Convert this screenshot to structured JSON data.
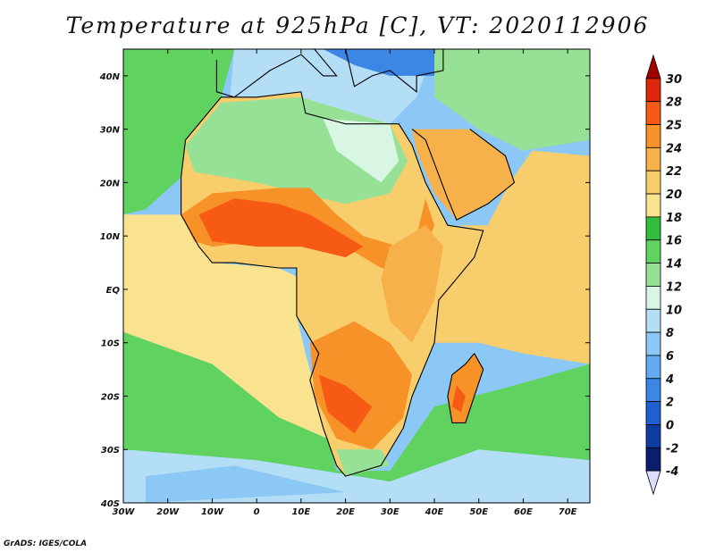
{
  "title": "Temperature at 925hPa [C], VT: 2020112906",
  "credit": "GrADS: IGES/COLA",
  "map": {
    "lon_range": [
      -30,
      75
    ],
    "lat_range": [
      -40,
      45
    ],
    "lon_ticks": [
      {
        "value": -30,
        "label": "30W"
      },
      {
        "value": -20,
        "label": "20W"
      },
      {
        "value": -10,
        "label": "10W"
      },
      {
        "value": 0,
        "label": "0"
      },
      {
        "value": 10,
        "label": "10E"
      },
      {
        "value": 20,
        "label": "20E"
      },
      {
        "value": 30,
        "label": "30E"
      },
      {
        "value": 40,
        "label": "40E"
      },
      {
        "value": 50,
        "label": "50E"
      },
      {
        "value": 60,
        "label": "60E"
      },
      {
        "value": 70,
        "label": "70E"
      }
    ],
    "lat_ticks": [
      {
        "value": 40,
        "label": "40N"
      },
      {
        "value": 30,
        "label": "30N"
      },
      {
        "value": 20,
        "label": "20N"
      },
      {
        "value": 10,
        "label": "10N"
      },
      {
        "value": 0,
        "label": "EQ"
      },
      {
        "value": -10,
        "label": "10S"
      },
      {
        "value": -20,
        "label": "20S"
      },
      {
        "value": -30,
        "label": "30S"
      },
      {
        "value": -40,
        "label": "40S"
      }
    ]
  },
  "colorbar": {
    "levels": [
      "30",
      "28",
      "25",
      "24",
      "22",
      "20",
      "18",
      "16",
      "14",
      "12",
      "10",
      "8",
      "6",
      "4",
      "2",
      "0",
      "-2",
      "-4"
    ],
    "colors": [
      "#a50000",
      "#e0260a",
      "#f65a14",
      "#f79228",
      "#f6b14b",
      "#f8ce6c",
      "#fae38f",
      "#32be3c",
      "#5fd25f",
      "#96e196",
      "#d9f5e4",
      "#b4def6",
      "#8cc8f5",
      "#64aaf0",
      "#3c87e6",
      "#1e5fd2",
      "#0f3ca0",
      "#0a1e6e",
      "#dcdcff"
    ]
  },
  "regions": [
    {
      "name": "ocean-cool",
      "color": "#8cc8f5",
      "points": [
        [
          -30,
          45
        ],
        [
          75,
          45
        ],
        [
          75,
          -40
        ],
        [
          -30,
          -40
        ]
      ]
    },
    {
      "name": "north-atlantic",
      "color": "#5fd25f",
      "points": [
        [
          -30,
          45
        ],
        [
          -5,
          45
        ],
        [
          -8,
          36
        ],
        [
          -16,
          28
        ],
        [
          -17,
          21
        ],
        [
          -25,
          15
        ],
        [
          -30,
          14
        ]
      ]
    },
    {
      "name": "mediterranean",
      "color": "#b4def6",
      "points": [
        [
          -5,
          45
        ],
        [
          40,
          45
        ],
        [
          36,
          36
        ],
        [
          30,
          31
        ],
        [
          10,
          34
        ],
        [
          0,
          36
        ],
        [
          -6,
          36
        ]
      ]
    },
    {
      "name": "europe-cold",
      "color": "#3c87e6",
      "points": [
        [
          15,
          45
        ],
        [
          45,
          45
        ],
        [
          42,
          40
        ],
        [
          30,
          40
        ],
        [
          22,
          42
        ]
      ]
    },
    {
      "name": "tropical-belt",
      "color": "#fae38f",
      "points": [
        [
          -30,
          14
        ],
        [
          -17,
          14
        ],
        [
          -10,
          5
        ],
        [
          5,
          4
        ],
        [
          10,
          2
        ],
        [
          9,
          -5
        ],
        [
          11,
          -12
        ],
        [
          13,
          -18
        ],
        [
          16,
          -28
        ],
        [
          5,
          -24
        ],
        [
          -10,
          -14
        ],
        [
          -30,
          -8
        ]
      ]
    },
    {
      "name": "indian-ocean",
      "color": "#f8ce6c",
      "points": [
        [
          45,
          12
        ],
        [
          52,
          12
        ],
        [
          57,
          20
        ],
        [
          62,
          26
        ],
        [
          75,
          25
        ],
        [
          75,
          -14
        ],
        [
          60,
          -12
        ],
        [
          50,
          -10
        ],
        [
          40,
          -10
        ],
        [
          41,
          -2
        ],
        [
          43,
          5
        ],
        [
          51,
          11
        ]
      ]
    },
    {
      "name": "south-ocean-green",
      "color": "#5fd25f",
      "points": [
        [
          -30,
          -8
        ],
        [
          -10,
          -14
        ],
        [
          5,
          -24
        ],
        [
          16,
          -28
        ],
        [
          18,
          -34
        ],
        [
          30,
          -34
        ],
        [
          40,
          -22
        ],
        [
          58,
          -18
        ],
        [
          75,
          -14
        ],
        [
          75,
          -32
        ],
        [
          50,
          -30
        ],
        [
          30,
          -36
        ],
        [
          0,
          -32
        ],
        [
          -30,
          -30
        ]
      ]
    },
    {
      "name": "southern-cool",
      "color": "#b4def6",
      "points": [
        [
          -30,
          -30
        ],
        [
          0,
          -32
        ],
        [
          30,
          -36
        ],
        [
          50,
          -30
        ],
        [
          75,
          -32
        ],
        [
          75,
          -40
        ],
        [
          -30,
          -40
        ]
      ]
    },
    {
      "name": "southern-cold",
      "color": "#8cc8f5",
      "points": [
        [
          -25,
          -35
        ],
        [
          -5,
          -33
        ],
        [
          20,
          -38
        ],
        [
          -25,
          -40
        ]
      ]
    },
    {
      "name": "africa-land",
      "color": "#f8ce6c",
      "points": [
        [
          -17,
          21
        ],
        [
          -16,
          28
        ],
        [
          -8,
          36
        ],
        [
          0,
          36
        ],
        [
          10,
          37
        ],
        [
          11,
          33
        ],
        [
          20,
          31
        ],
        [
          30,
          31
        ],
        [
          32,
          31
        ],
        [
          35,
          27
        ],
        [
          38,
          20
        ],
        [
          43,
          12
        ],
        [
          51,
          11
        ],
        [
          49,
          6
        ],
        [
          41,
          -2
        ],
        [
          40,
          -10
        ],
        [
          35,
          -20
        ],
        [
          33,
          -26
        ],
        [
          28,
          -33
        ],
        [
          20,
          -35
        ],
        [
          18,
          -33
        ],
        [
          15,
          -26
        ],
        [
          12,
          -17
        ],
        [
          14,
          -12
        ],
        [
          9,
          -5
        ],
        [
          9,
          4
        ],
        [
          5,
          4
        ],
        [
          -5,
          5
        ],
        [
          -10,
          5
        ],
        [
          -13,
          8
        ],
        [
          -17,
          14
        ]
      ]
    },
    {
      "name": "sahara-green",
      "color": "#96e196",
      "points": [
        [
          -16,
          27
        ],
        [
          -8,
          35
        ],
        [
          10,
          36
        ],
        [
          30,
          31
        ],
        [
          34,
          24
        ],
        [
          30,
          18
        ],
        [
          20,
          16
        ],
        [
          10,
          18
        ],
        [
          0,
          20
        ],
        [
          -14,
          22
        ]
      ]
    },
    {
      "name": "sahara-pale",
      "color": "#d9f5e4",
      "points": [
        [
          15,
          32
        ],
        [
          30,
          31
        ],
        [
          32,
          24
        ],
        [
          28,
          20
        ],
        [
          18,
          26
        ]
      ]
    },
    {
      "name": "sahel-hot",
      "color": "#f79228",
      "points": [
        [
          -17,
          14
        ],
        [
          -10,
          18
        ],
        [
          5,
          19
        ],
        [
          12,
          19
        ],
        [
          18,
          14
        ],
        [
          24,
          10
        ],
        [
          32,
          8
        ],
        [
          36,
          10
        ],
        [
          38,
          17
        ],
        [
          40,
          12
        ],
        [
          36,
          3
        ],
        [
          28,
          4
        ],
        [
          20,
          8
        ],
        [
          10,
          10
        ],
        [
          0,
          9
        ],
        [
          -10,
          8
        ],
        [
          -14,
          9
        ]
      ]
    },
    {
      "name": "sahel-core",
      "color": "#f65a14",
      "points": [
        [
          -13,
          14
        ],
        [
          -5,
          17
        ],
        [
          5,
          16
        ],
        [
          12,
          14
        ],
        [
          18,
          11
        ],
        [
          24,
          8
        ],
        [
          20,
          6
        ],
        [
          10,
          8
        ],
        [
          0,
          8
        ],
        [
          -10,
          9
        ]
      ]
    },
    {
      "name": "east-africa-hot",
      "color": "#f6b14b",
      "points": [
        [
          30,
          8
        ],
        [
          38,
          12
        ],
        [
          42,
          8
        ],
        [
          40,
          -2
        ],
        [
          35,
          -10
        ],
        [
          30,
          -6
        ],
        [
          28,
          2
        ]
      ]
    },
    {
      "name": "southern-africa-hot",
      "color": "#f79228",
      "points": [
        [
          12,
          -10
        ],
        [
          22,
          -6
        ],
        [
          30,
          -10
        ],
        [
          35,
          -16
        ],
        [
          33,
          -24
        ],
        [
          26,
          -30
        ],
        [
          18,
          -28
        ],
        [
          13,
          -20
        ]
      ]
    },
    {
      "name": "kalahari-core",
      "color": "#f65a14",
      "points": [
        [
          14,
          -16
        ],
        [
          20,
          -18
        ],
        [
          26,
          -22
        ],
        [
          22,
          -27
        ],
        [
          16,
          -23
        ]
      ]
    },
    {
      "name": "south-cape",
      "color": "#96e196",
      "points": [
        [
          18,
          -30
        ],
        [
          28,
          -30
        ],
        [
          30,
          -33
        ],
        [
          20,
          -35
        ]
      ]
    },
    {
      "name": "arabia",
      "color": "#f6b14b",
      "points": [
        [
          35,
          30
        ],
        [
          48,
          30
        ],
        [
          56,
          25
        ],
        [
          58,
          20
        ],
        [
          52,
          16
        ],
        [
          45,
          13
        ],
        [
          40,
          18
        ],
        [
          36,
          26
        ]
      ]
    },
    {
      "name": "asia-cool",
      "color": "#96e196",
      "points": [
        [
          40,
          45
        ],
        [
          75,
          45
        ],
        [
          75,
          28
        ],
        [
          60,
          26
        ],
        [
          50,
          30
        ],
        [
          40,
          36
        ]
      ]
    },
    {
      "name": "madagascar",
      "color": "#f79228",
      "points": [
        [
          49,
          -12
        ],
        [
          51,
          -15
        ],
        [
          49,
          -20
        ],
        [
          47,
          -25
        ],
        [
          44,
          -25
        ],
        [
          43,
          -20
        ],
        [
          44,
          -16
        ],
        [
          47,
          -14
        ]
      ]
    },
    {
      "name": "madagascar-core",
      "color": "#f65a14",
      "points": [
        [
          45,
          -18
        ],
        [
          47,
          -20
        ],
        [
          46,
          -23
        ],
        [
          44,
          -22
        ]
      ]
    }
  ],
  "coastlines": [
    {
      "name": "africa-coast",
      "points": [
        [
          -17,
          21
        ],
        [
          -16,
          28
        ],
        [
          -8,
          36
        ],
        [
          0,
          36
        ],
        [
          10,
          37
        ],
        [
          11,
          33
        ],
        [
          20,
          31
        ],
        [
          30,
          31
        ],
        [
          32,
          31
        ],
        [
          35,
          27
        ],
        [
          38,
          20
        ],
        [
          43,
          12
        ],
        [
          51,
          11
        ],
        [
          49,
          6
        ],
        [
          41,
          -2
        ],
        [
          40,
          -10
        ],
        [
          35,
          -20
        ],
        [
          33,
          -26
        ],
        [
          28,
          -33
        ],
        [
          20,
          -35
        ],
        [
          18,
          -33
        ],
        [
          15,
          -26
        ],
        [
          12,
          -17
        ],
        [
          14,
          -12
        ],
        [
          9,
          -5
        ],
        [
          9,
          4
        ],
        [
          5,
          4
        ],
        [
          -5,
          5
        ],
        [
          -10,
          5
        ],
        [
          -13,
          8
        ],
        [
          -17,
          14
        ],
        [
          -17,
          21
        ]
      ]
    },
    {
      "name": "arabia-coast",
      "points": [
        [
          35,
          30
        ],
        [
          38,
          28
        ],
        [
          43,
          17
        ],
        [
          45,
          13
        ],
        [
          52,
          16
        ],
        [
          58,
          20
        ],
        [
          56,
          25
        ],
        [
          48,
          30
        ]
      ]
    },
    {
      "name": "europe-coast",
      "points": [
        [
          -9,
          43
        ],
        [
          -9,
          37
        ],
        [
          -5,
          36
        ],
        [
          3,
          41
        ],
        [
          10,
          44
        ],
        [
          15,
          40
        ],
        [
          18,
          40
        ],
        [
          13,
          45
        ]
      ]
    },
    {
      "name": "greece-turkey-coast",
      "points": [
        [
          20,
          45
        ],
        [
          22,
          38
        ],
        [
          26,
          40
        ],
        [
          30,
          41
        ],
        [
          36,
          37
        ],
        [
          36,
          40
        ],
        [
          42,
          41
        ],
        [
          42,
          45
        ]
      ]
    },
    {
      "name": "madagascar-coast",
      "points": [
        [
          49,
          -12
        ],
        [
          51,
          -15
        ],
        [
          49,
          -20
        ],
        [
          47,
          -25
        ],
        [
          44,
          -25
        ],
        [
          43,
          -20
        ],
        [
          44,
          -16
        ],
        [
          47,
          -14
        ],
        [
          49,
          -12
        ]
      ]
    }
  ]
}
